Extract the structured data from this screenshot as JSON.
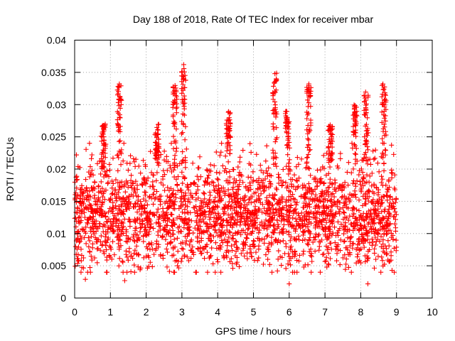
{
  "chart_data": {
    "type": "scatter",
    "title": "Day 188 of 2018, Rate Of TEC Index for receiver mbar",
    "xlabel": "GPS time / hours",
    "ylabel": "ROTI / TECUs",
    "xlim": [
      0,
      10
    ],
    "ylim": [
      0,
      0.04
    ],
    "x_ticks": [
      "0",
      "1",
      "2",
      "3",
      "4",
      "5",
      "6",
      "7",
      "8",
      "9",
      "10"
    ],
    "y_ticks": [
      "0",
      "0.005",
      "0.01",
      "0.015",
      "0.02",
      "0.025",
      "0.03",
      "0.035",
      "0.04"
    ],
    "grid": true,
    "marker": "+",
    "marker_color": "#ff0000",
    "notable_points": [
      {
        "x": 1.25,
        "y": 0.0332
      },
      {
        "x": 3.05,
        "y": 0.0362
      },
      {
        "x": 5.6,
        "y": 0.0348
      },
      {
        "x": 6.55,
        "y": 0.0332
      },
      {
        "x": 8.62,
        "y": 0.0332
      },
      {
        "x": 0.05,
        "y": 0.0222
      },
      {
        "x": 0.3,
        "y": 0.0029
      },
      {
        "x": 1.4,
        "y": 0.0027
      },
      {
        "x": 6.0,
        "y": 0.0022
      },
      {
        "x": 8.2,
        "y": 0.0022
      }
    ],
    "series": [
      {
        "name": "ROTI",
        "x_range": [
          0,
          9.0
        ],
        "typical_band": [
          0.005,
          0.022
        ],
        "median": 0.013,
        "peaks": [
          {
            "x": 0.8,
            "y": 0.027
          },
          {
            "x": 1.25,
            "y": 0.033
          },
          {
            "x": 2.3,
            "y": 0.027
          },
          {
            "x": 2.8,
            "y": 0.033
          },
          {
            "x": 3.05,
            "y": 0.036
          },
          {
            "x": 4.3,
            "y": 0.029
          },
          {
            "x": 5.6,
            "y": 0.035
          },
          {
            "x": 5.95,
            "y": 0.029
          },
          {
            "x": 6.55,
            "y": 0.033
          },
          {
            "x": 7.15,
            "y": 0.027
          },
          {
            "x": 7.85,
            "y": 0.03
          },
          {
            "x": 8.15,
            "y": 0.032
          },
          {
            "x": 8.65,
            "y": 0.033
          }
        ]
      }
    ]
  }
}
